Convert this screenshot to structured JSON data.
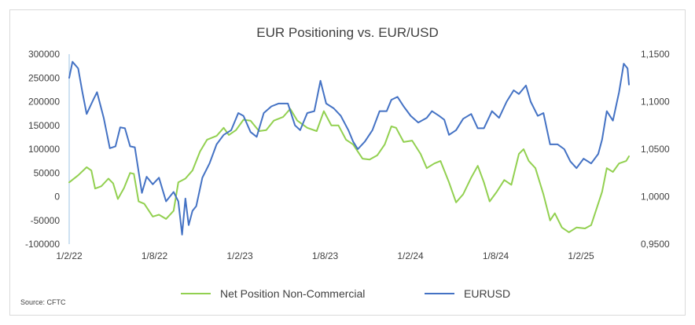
{
  "chart_data": {
    "type": "line",
    "title": "EUR Positioning vs. EUR/USD",
    "source": "Source: CFTC",
    "x_ticks": [
      "1/2/22",
      "1/8/22",
      "1/2/23",
      "1/8/23",
      "1/2/24",
      "1/8/24",
      "1/2/25"
    ],
    "x_range": [
      "2022-02-01",
      "2025-05-01"
    ],
    "y_left": {
      "ticks": [
        "300000",
        "250000",
        "200000",
        "150000",
        "100000",
        "50000",
        "0",
        "-50000",
        "-100000"
      ],
      "range": [
        -100000,
        300000
      ]
    },
    "y_right": {
      "ticks": [
        "1,1500",
        "1,1000",
        "1,0500",
        "1,0000",
        "0,9500"
      ],
      "range": [
        0.95,
        1.15
      ]
    },
    "legend_position": "bottom",
    "series": [
      {
        "name": "Net Position Non-Commercial",
        "axis": "left",
        "color": "#92d050",
        "points": [
          [
            "2022-02-01",
            30000
          ],
          [
            "2022-02-20",
            45000
          ],
          [
            "2022-03-10",
            62000
          ],
          [
            "2022-03-20",
            55000
          ],
          [
            "2022-03-28",
            17000
          ],
          [
            "2022-04-10",
            22000
          ],
          [
            "2022-04-25",
            38000
          ],
          [
            "2022-05-05",
            28000
          ],
          [
            "2022-05-15",
            -5000
          ],
          [
            "2022-05-28",
            18000
          ],
          [
            "2022-06-10",
            50000
          ],
          [
            "2022-06-18",
            48000
          ],
          [
            "2022-06-28",
            -10000
          ],
          [
            "2022-07-10",
            -15000
          ],
          [
            "2022-07-28",
            -42000
          ],
          [
            "2022-08-10",
            -38000
          ],
          [
            "2022-08-25",
            -47000
          ],
          [
            "2022-09-10",
            -30000
          ],
          [
            "2022-09-20",
            30000
          ],
          [
            "2022-10-05",
            38000
          ],
          [
            "2022-10-20",
            55000
          ],
          [
            "2022-11-05",
            95000
          ],
          [
            "2022-11-20",
            120000
          ],
          [
            "2022-12-10",
            128000
          ],
          [
            "2022-12-25",
            145000
          ],
          [
            "2023-01-05",
            130000
          ],
          [
            "2023-01-20",
            140000
          ],
          [
            "2023-02-05",
            162000
          ],
          [
            "2023-02-20",
            160000
          ],
          [
            "2023-03-10",
            138000
          ],
          [
            "2023-03-25",
            140000
          ],
          [
            "2023-04-10",
            160000
          ],
          [
            "2023-04-30",
            168000
          ],
          [
            "2023-05-15",
            185000
          ],
          [
            "2023-05-30",
            160000
          ],
          [
            "2023-06-20",
            145000
          ],
          [
            "2023-07-10",
            138000
          ],
          [
            "2023-07-25",
            180000
          ],
          [
            "2023-08-10",
            150000
          ],
          [
            "2023-08-25",
            150000
          ],
          [
            "2023-09-10",
            120000
          ],
          [
            "2023-09-25",
            110000
          ],
          [
            "2023-10-15",
            80000
          ],
          [
            "2023-10-30",
            78000
          ],
          [
            "2023-11-15",
            87000
          ],
          [
            "2023-12-01",
            110000
          ],
          [
            "2023-12-15",
            148000
          ],
          [
            "2023-12-25",
            145000
          ],
          [
            "2024-01-10",
            115000
          ],
          [
            "2024-01-28",
            118000
          ],
          [
            "2024-02-15",
            90000
          ],
          [
            "2024-02-28",
            60000
          ],
          [
            "2024-03-15",
            70000
          ],
          [
            "2024-03-28",
            75000
          ],
          [
            "2024-04-15",
            30000
          ],
          [
            "2024-04-30",
            -12000
          ],
          [
            "2024-05-15",
            5000
          ],
          [
            "2024-06-01",
            40000
          ],
          [
            "2024-06-15",
            65000
          ],
          [
            "2024-06-28",
            30000
          ],
          [
            "2024-07-10",
            -10000
          ],
          [
            "2024-07-25",
            10000
          ],
          [
            "2024-08-10",
            35000
          ],
          [
            "2024-08-25",
            25000
          ],
          [
            "2024-09-10",
            90000
          ],
          [
            "2024-09-20",
            100000
          ],
          [
            "2024-10-01",
            75000
          ],
          [
            "2024-10-15",
            60000
          ],
          [
            "2024-11-01",
            5000
          ],
          [
            "2024-11-15",
            -50000
          ],
          [
            "2024-11-25",
            -35000
          ],
          [
            "2024-12-10",
            -65000
          ],
          [
            "2024-12-25",
            -75000
          ],
          [
            "2025-01-10",
            -65000
          ],
          [
            "2025-01-28",
            -67000
          ],
          [
            "2025-02-10",
            -60000
          ],
          [
            "2025-02-20",
            -30000
          ],
          [
            "2025-03-05",
            10000
          ],
          [
            "2025-03-15",
            60000
          ],
          [
            "2025-03-28",
            52000
          ],
          [
            "2025-04-10",
            70000
          ],
          [
            "2025-04-25",
            75000
          ],
          [
            "2025-05-01",
            85000
          ]
        ]
      },
      {
        "name": "EURUSD",
        "axis": "right",
        "color": "#4472c4",
        "points": [
          [
            "2022-02-01",
            1.125
          ],
          [
            "2022-02-08",
            1.142
          ],
          [
            "2022-02-20",
            1.135
          ],
          [
            "2022-03-01",
            1.11
          ],
          [
            "2022-03-10",
            1.087
          ],
          [
            "2022-03-25",
            1.103
          ],
          [
            "2022-04-01",
            1.11
          ],
          [
            "2022-04-15",
            1.083
          ],
          [
            "2022-04-28",
            1.051
          ],
          [
            "2022-05-10",
            1.053
          ],
          [
            "2022-05-20",
            1.073
          ],
          [
            "2022-05-30",
            1.072
          ],
          [
            "2022-06-10",
            1.053
          ],
          [
            "2022-06-20",
            1.052
          ],
          [
            "2022-07-05",
            1.004
          ],
          [
            "2022-07-15",
            1.021
          ],
          [
            "2022-07-28",
            1.013
          ],
          [
            "2022-08-10",
            1.02
          ],
          [
            "2022-08-25",
            0.995
          ],
          [
            "2022-09-10",
            1.005
          ],
          [
            "2022-09-20",
            0.995
          ],
          [
            "2022-09-28",
            0.96
          ],
          [
            "2022-10-05",
            0.998
          ],
          [
            "2022-10-12",
            0.97
          ],
          [
            "2022-10-20",
            0.985
          ],
          [
            "2022-10-28",
            0.99
          ],
          [
            "2022-11-10",
            1.02
          ],
          [
            "2022-11-25",
            1.035
          ],
          [
            "2022-12-10",
            1.055
          ],
          [
            "2022-12-25",
            1.065
          ],
          [
            "2023-01-10",
            1.07
          ],
          [
            "2023-01-25",
            1.088
          ],
          [
            "2023-02-05",
            1.085
          ],
          [
            "2023-02-20",
            1.068
          ],
          [
            "2023-03-05",
            1.063
          ],
          [
            "2023-03-20",
            1.088
          ],
          [
            "2023-04-05",
            1.095
          ],
          [
            "2023-04-20",
            1.098
          ],
          [
            "2023-05-10",
            1.098
          ],
          [
            "2023-05-25",
            1.075
          ],
          [
            "2023-06-05",
            1.07
          ],
          [
            "2023-06-20",
            1.088
          ],
          [
            "2023-07-05",
            1.09
          ],
          [
            "2023-07-18",
            1.122
          ],
          [
            "2023-07-30",
            1.098
          ],
          [
            "2023-08-15",
            1.093
          ],
          [
            "2023-08-30",
            1.085
          ],
          [
            "2023-09-15",
            1.07
          ],
          [
            "2023-09-25",
            1.058
          ],
          [
            "2023-10-05",
            1.05
          ],
          [
            "2023-10-20",
            1.058
          ],
          [
            "2023-11-05",
            1.07
          ],
          [
            "2023-11-20",
            1.09
          ],
          [
            "2023-12-05",
            1.09
          ],
          [
            "2023-12-15",
            1.102
          ],
          [
            "2023-12-28",
            1.105
          ],
          [
            "2024-01-10",
            1.095
          ],
          [
            "2024-01-25",
            1.085
          ],
          [
            "2024-02-10",
            1.078
          ],
          [
            "2024-02-28",
            1.083
          ],
          [
            "2024-03-10",
            1.09
          ],
          [
            "2024-03-25",
            1.085
          ],
          [
            "2024-04-05",
            1.081
          ],
          [
            "2024-04-15",
            1.065
          ],
          [
            "2024-04-30",
            1.07
          ],
          [
            "2024-05-15",
            1.082
          ],
          [
            "2024-06-01",
            1.087
          ],
          [
            "2024-06-15",
            1.072
          ],
          [
            "2024-06-28",
            1.072
          ],
          [
            "2024-07-15",
            1.09
          ],
          [
            "2024-07-30",
            1.083
          ],
          [
            "2024-08-15",
            1.1
          ],
          [
            "2024-08-30",
            1.112
          ],
          [
            "2024-09-10",
            1.108
          ],
          [
            "2024-09-25",
            1.117
          ],
          [
            "2024-10-05",
            1.1
          ],
          [
            "2024-10-20",
            1.085
          ],
          [
            "2024-11-01",
            1.088
          ],
          [
            "2024-11-15",
            1.055
          ],
          [
            "2024-12-01",
            1.055
          ],
          [
            "2024-12-15",
            1.05
          ],
          [
            "2024-12-28",
            1.037
          ],
          [
            "2025-01-10",
            1.03
          ],
          [
            "2025-01-25",
            1.04
          ],
          [
            "2025-02-10",
            1.035
          ],
          [
            "2025-02-25",
            1.045
          ],
          [
            "2025-03-05",
            1.06
          ],
          [
            "2025-03-15",
            1.09
          ],
          [
            "2025-03-28",
            1.08
          ],
          [
            "2025-04-10",
            1.11
          ],
          [
            "2025-04-20",
            1.14
          ],
          [
            "2025-04-28",
            1.135
          ],
          [
            "2025-05-01",
            1.118
          ]
        ]
      }
    ]
  }
}
